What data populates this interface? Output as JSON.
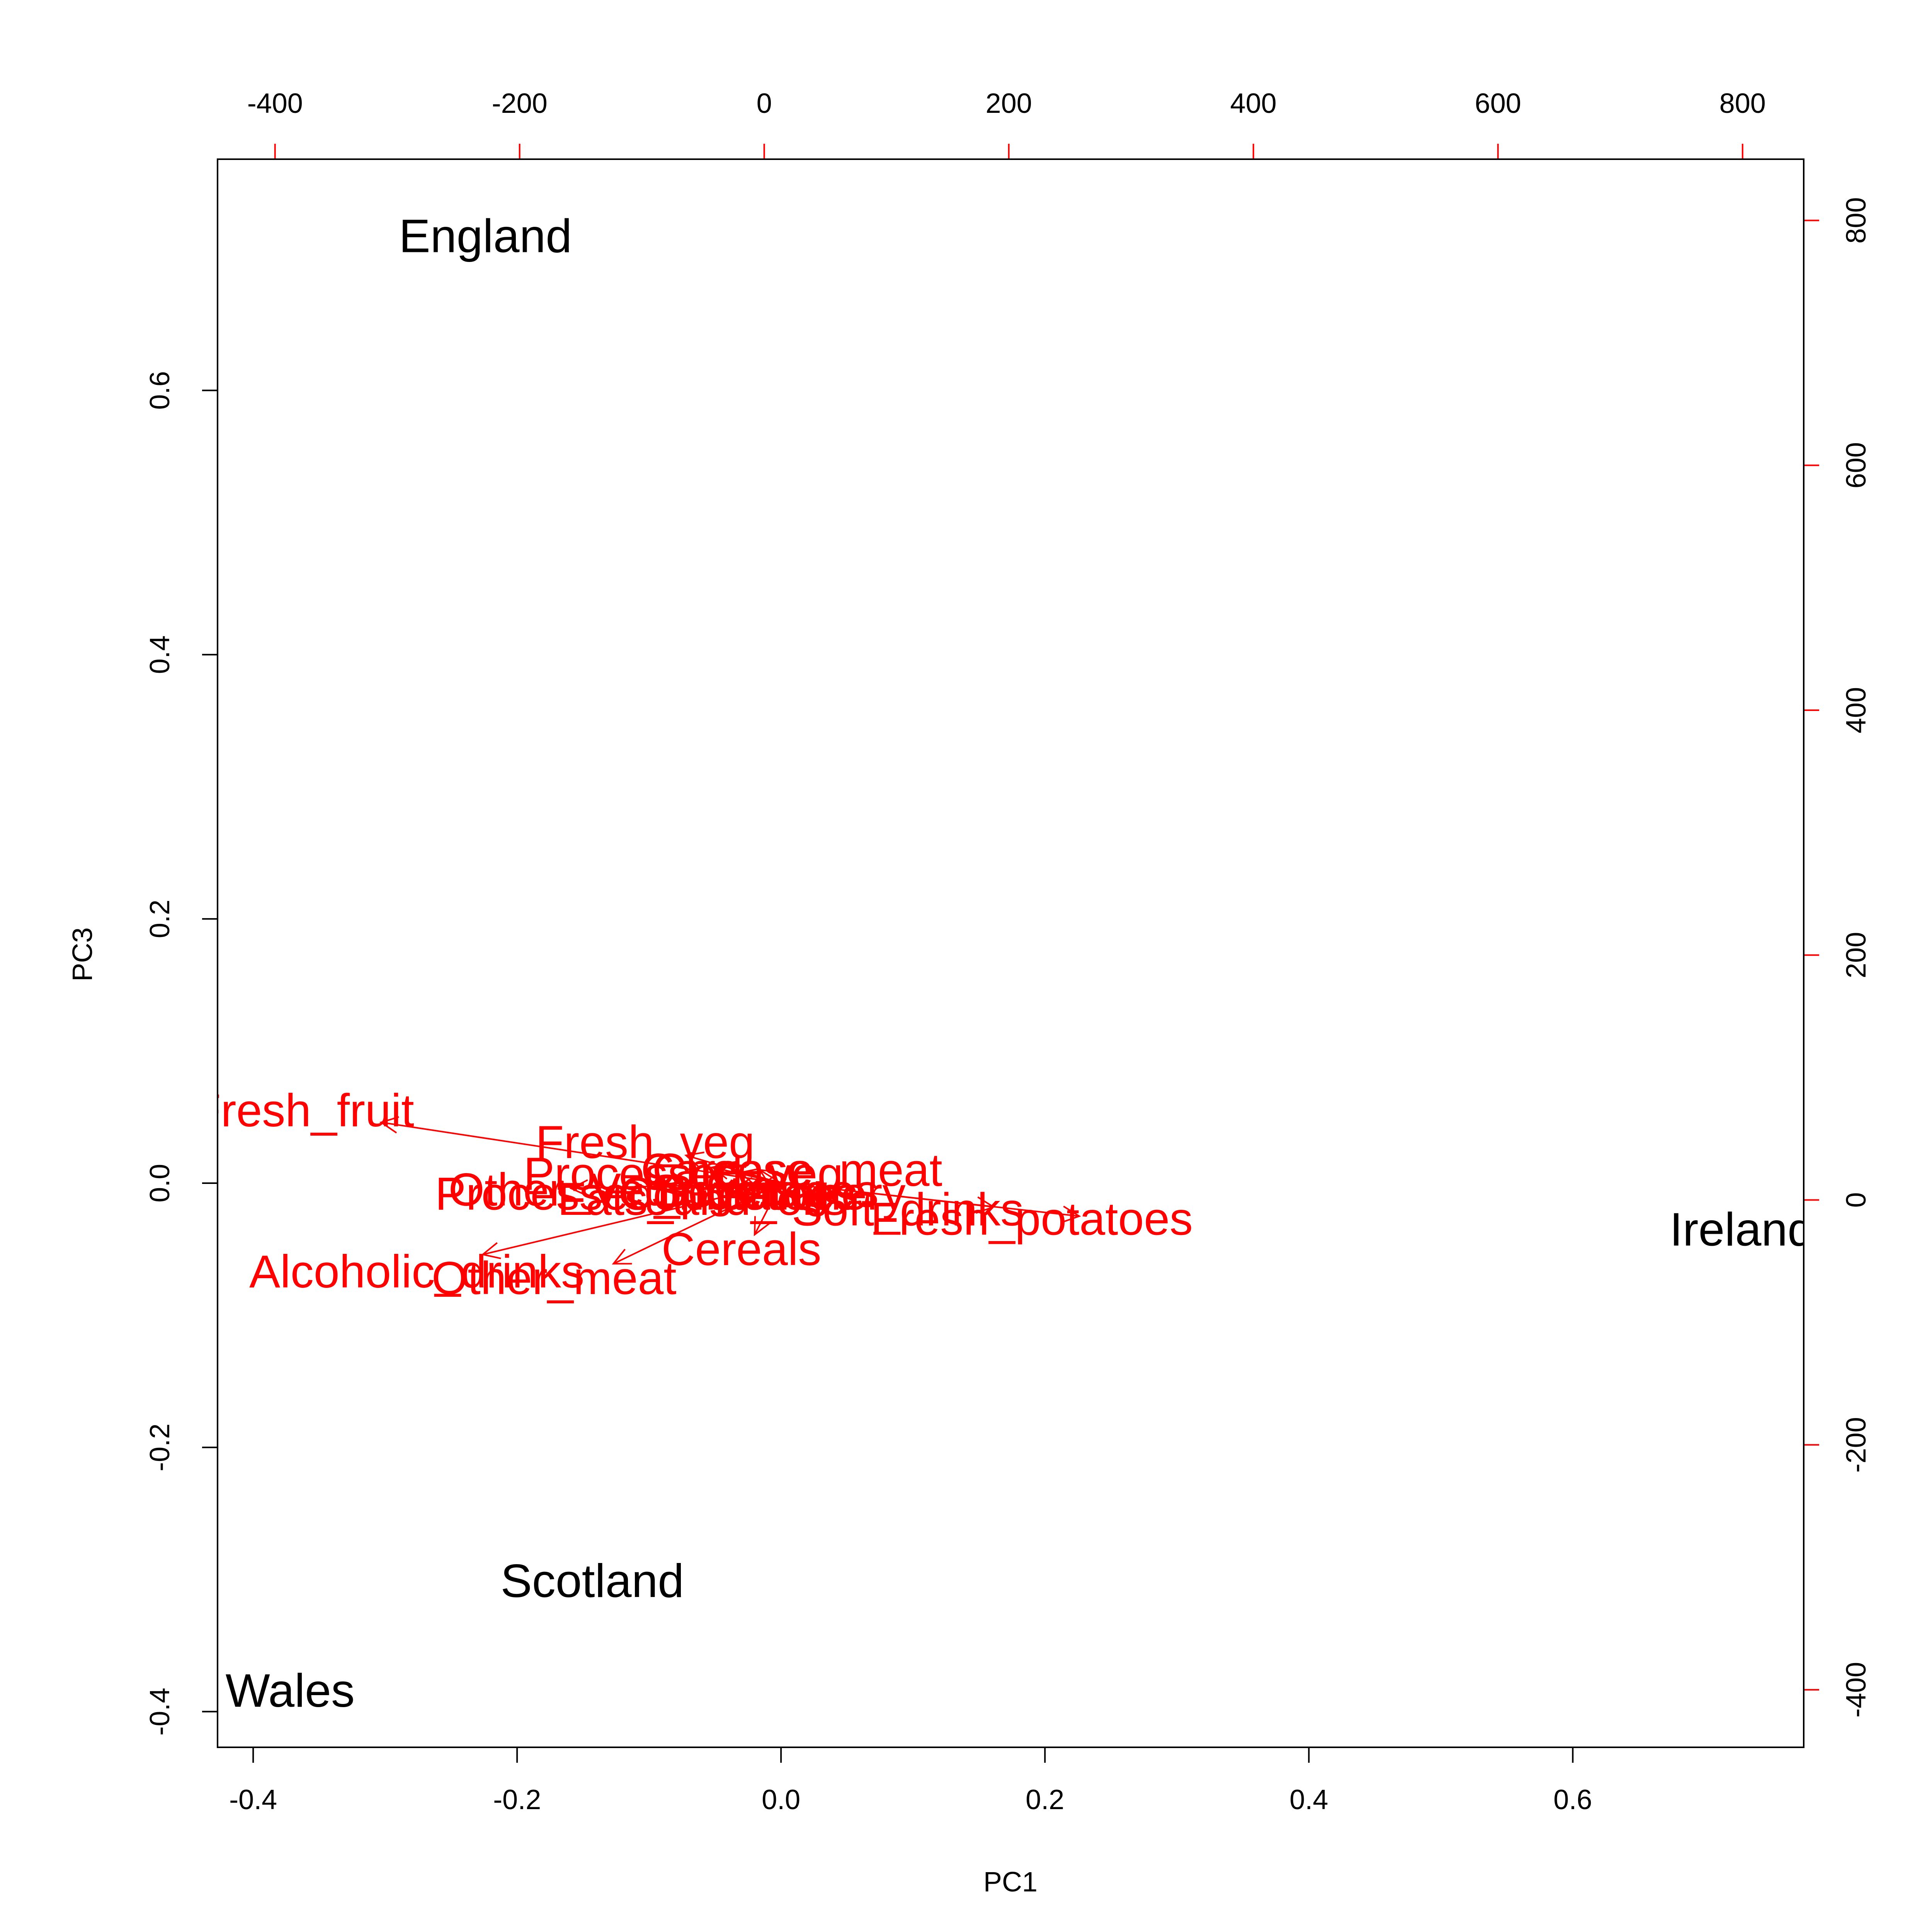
{
  "chart_data": {
    "type": "scatter",
    "subtype": "biplot",
    "xlabel": "PC1",
    "ylabel": "PC3",
    "xlim": [
      -0.427,
      0.775
    ],
    "ylim": [
      -0.427,
      0.775
    ],
    "secondary_xlim": [
      -447,
      850
    ],
    "secondary_ylim": [
      -447,
      850
    ],
    "x_ticks": [
      "-0.4",
      "-0.2",
      "0.0",
      "0.2",
      "0.4",
      "0.6"
    ],
    "x_tick_values": [
      -0.4,
      -0.2,
      0.0,
      0.2,
      0.4,
      0.6
    ],
    "y_ticks": [
      "-0.4",
      "-0.2",
      "0.0",
      "0.2",
      "0.4",
      "0.6"
    ],
    "y_tick_values": [
      -0.4,
      -0.2,
      0.0,
      0.2,
      0.4,
      0.6
    ],
    "top_ticks": [
      "-400",
      "-200",
      "0",
      "200",
      "400",
      "600",
      "800"
    ],
    "top_tick_values": [
      -400,
      -200,
      0,
      200,
      400,
      600,
      800
    ],
    "right_ticks": [
      "-400",
      "-200",
      "0",
      "200",
      "400",
      "600",
      "800"
    ],
    "right_tick_values": [
      -400,
      -200,
      0,
      200,
      400,
      600,
      800
    ],
    "colors": {
      "axis": "#000000",
      "loading": "#ff0000",
      "observation": "#000000"
    },
    "observations": [
      {
        "label": "England",
        "x": -0.224,
        "y": 0.717
      },
      {
        "label": "Wales",
        "x": -0.372,
        "y": -0.384
      },
      {
        "label": "Scotland",
        "x": -0.143,
        "y": -0.301
      },
      {
        "label": "Ireland",
        "x": 0.728,
        "y": -0.035
      }
    ],
    "loadings": [
      {
        "label": "Fresh_fruit",
        "x": -0.303,
        "y": 0.046,
        "label_x": -0.362,
        "label_y": 0.055
      },
      {
        "label": "Fresh_veg",
        "x": -0.072,
        "y": 0.021,
        "label_x": -0.103,
        "label_y": 0.031
      },
      {
        "label": "Processed_veg",
        "x": -0.052,
        "y": 0.012,
        "label_x": -0.074,
        "label_y": 0.007
      },
      {
        "label": "Carcase_meat",
        "x": -0.016,
        "y": 0.01,
        "label_x": 0.008,
        "label_y": 0.01
      },
      {
        "label": "Cheese",
        "x": -0.031,
        "y": 0.008,
        "label_x": -0.037,
        "label_y": 0.01
      },
      {
        "label": "Other_Veg",
        "x": -0.159,
        "y": -0.004,
        "label_x": -0.168,
        "label_y": -0.005
      },
      {
        "label": "Processed_potatoes",
        "x": -0.078,
        "y": -0.002,
        "label_x": -0.102,
        "label_y": -0.008
      },
      {
        "label": "Fats_and_oils",
        "x": -0.046,
        "y": -0.004,
        "label_x": -0.06,
        "label_y": -0.012
      },
      {
        "label": "Sugars",
        "x": -0.034,
        "y": -0.003,
        "label_x": -0.043,
        "label_y": -0.006
      },
      {
        "label": "Beverages",
        "x": -0.023,
        "y": -0.005,
        "label_x": -0.01,
        "label_y": -0.006
      },
      {
        "label": "Confectionery",
        "x": -0.017,
        "y": -0.004,
        "label_x": -0.014,
        "label_y": -0.008
      },
      {
        "label": "Soft_drinks",
        "x": 0.161,
        "y": -0.018,
        "label_x": 0.096,
        "label_y": -0.02
      },
      {
        "label": "Fresh_potatoes",
        "x": 0.226,
        "y": -0.025,
        "label_x": 0.19,
        "label_y": -0.027
      },
      {
        "label": "Cereals",
        "x": -0.02,
        "y": -0.039,
        "label_x": -0.03,
        "label_y": -0.05
      },
      {
        "label": "Alcoholic_drinks",
        "x": -0.226,
        "y": -0.054,
        "label_x": -0.276,
        "label_y": -0.067
      },
      {
        "label": "Other_meat",
        "x": -0.127,
        "y": -0.061,
        "label_x": -0.172,
        "label_y": -0.072
      }
    ]
  }
}
